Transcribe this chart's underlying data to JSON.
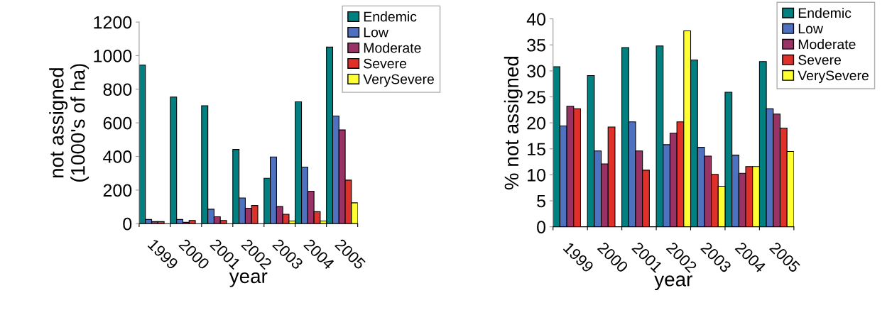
{
  "chart_data": [
    {
      "type": "bar",
      "categories": [
        "1999",
        "2000",
        "2001",
        "2002",
        "2003",
        "2004",
        "2005"
      ],
      "xlabel": "year",
      "ylabel": "not assigned\n(1000's of ha)",
      "ylim": [
        0,
        1200
      ],
      "yticks": [
        0,
        200,
        400,
        600,
        800,
        1000,
        1200
      ],
      "grid": false,
      "legend": "top right",
      "series": [
        {
          "name": "Endemic",
          "color": "#008080",
          "values": [
            944,
            754,
            702,
            442,
            270,
            725,
            1051
          ]
        },
        {
          "name": "Low",
          "color": "#4f72c0",
          "values": [
            25,
            25,
            86,
            153,
            397,
            337,
            641
          ]
        },
        {
          "name": "Moderate",
          "color": "#993366",
          "values": [
            12,
            8,
            41,
            92,
            102,
            193,
            558
          ]
        },
        {
          "name": "Severe",
          "color": "#e0302a",
          "values": [
            12,
            19,
            19,
            108,
            56,
            71,
            259
          ]
        },
        {
          "name": "VerySevere",
          "color": "#ffff33",
          "values": [
            null,
            null,
            null,
            null,
            16,
            16,
            124
          ]
        }
      ]
    },
    {
      "type": "bar",
      "categories": [
        "1999",
        "2000",
        "2001",
        "2002",
        "2003",
        "2004",
        "2005"
      ],
      "xlabel": "year",
      "ylabel": "% not assigned",
      "ylim": [
        0,
        40
      ],
      "yticks": [
        0,
        5,
        10,
        15,
        20,
        25,
        30,
        35,
        40
      ],
      "grid": false,
      "legend": "top right",
      "series": [
        {
          "name": "Endemic",
          "color": "#008080",
          "values": [
            30.8,
            29.1,
            34.5,
            34.8,
            32.1,
            25.9,
            31.8
          ]
        },
        {
          "name": "Low",
          "color": "#4f72c0",
          "values": [
            19.4,
            14.6,
            20.2,
            15.8,
            15.3,
            13.8,
            22.7
          ]
        },
        {
          "name": "Moderate",
          "color": "#993366",
          "values": [
            23.2,
            12.1,
            14.6,
            18.0,
            13.6,
            10.3,
            21.7
          ]
        },
        {
          "name": "Severe",
          "color": "#e0302a",
          "values": [
            22.7,
            19.2,
            10.9,
            20.2,
            10.1,
            11.6,
            19.0
          ]
        },
        {
          "name": "VerySevere",
          "color": "#ffff33",
          "values": [
            null,
            null,
            null,
            37.7,
            7.8,
            11.6,
            14.5
          ]
        }
      ]
    }
  ]
}
